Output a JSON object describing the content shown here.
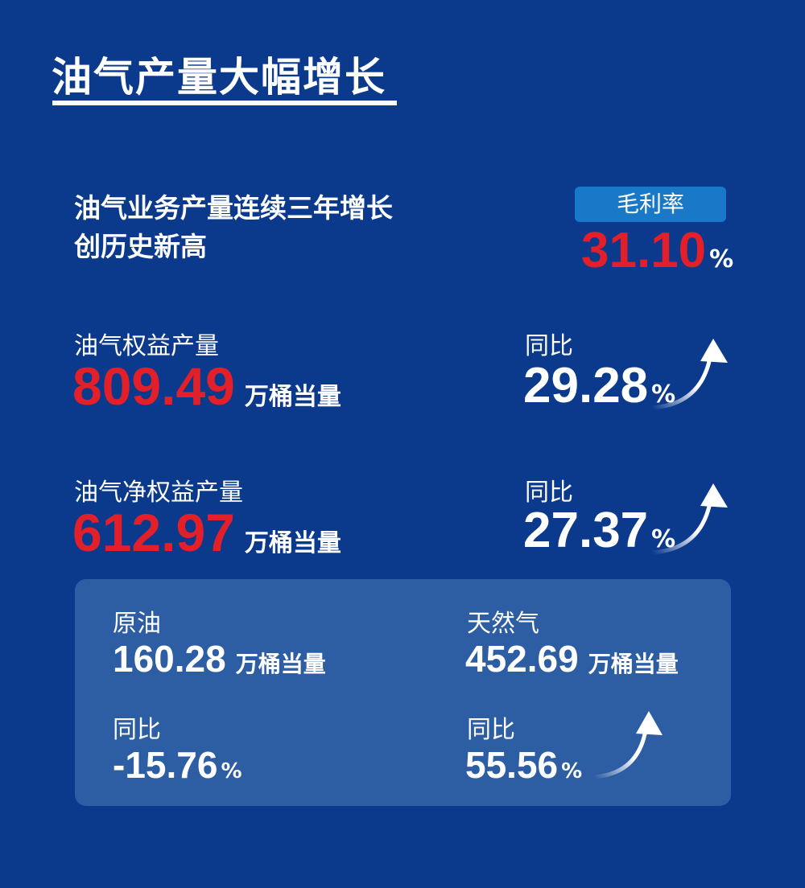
{
  "title": "油气产量大幅增长",
  "headline": {
    "line1": "油气业务产量连续三年增长",
    "line2": "创历史新高"
  },
  "gross_margin": {
    "label": "毛利率",
    "value": "31.10",
    "unit": "%"
  },
  "equity_production": {
    "label": "油气权益产量",
    "value": "809.49",
    "unit": "万桶当量",
    "yoy_label": "同比",
    "yoy_value": "29.28",
    "yoy_unit": "%"
  },
  "net_equity_production": {
    "label": "油气净权益产量",
    "value": "612.97",
    "unit": "万桶当量",
    "yoy_label": "同比",
    "yoy_value": "27.37",
    "yoy_unit": "%"
  },
  "crude_oil": {
    "label": "原油",
    "value": "160.28",
    "unit": "万桶当量",
    "yoy_label": "同比",
    "yoy_value": "-15.76",
    "yoy_unit": "%"
  },
  "natural_gas": {
    "label": "天然气",
    "value": "452.69",
    "unit": "万桶当量",
    "yoy_label": "同比",
    "yoy_value": "55.56",
    "yoy_unit": "%"
  },
  "colors": {
    "background": "#0b3a8d",
    "accent_red": "#e3202a",
    "badge": "#1a78c8",
    "panel": "#2d5ea4"
  }
}
